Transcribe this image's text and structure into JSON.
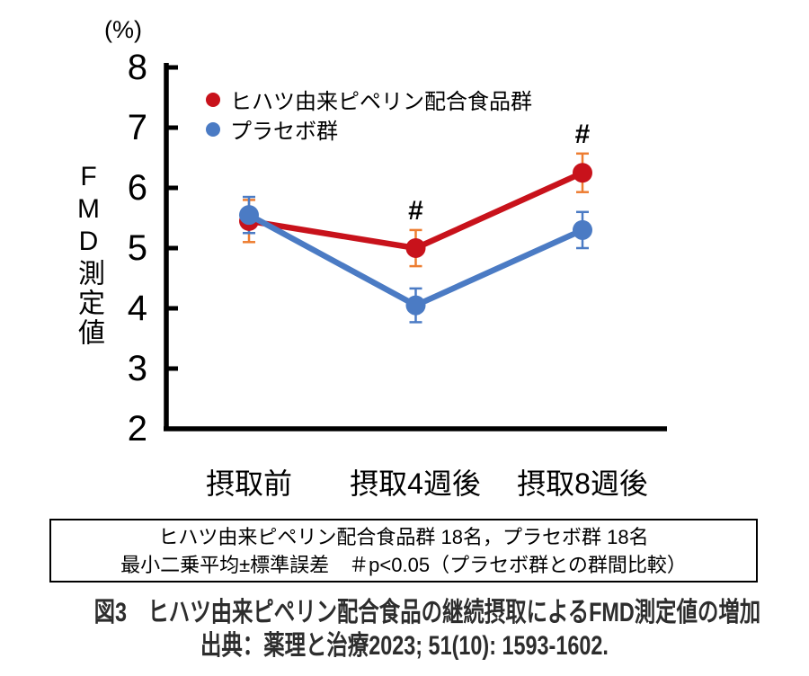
{
  "chart_data": {
    "type": "line",
    "title": "図3　ヒハツ由来ピペリン配合食品の継続摂取によるFMD測定値の増加",
    "y_unit": "(%)",
    "y_axis_label": "FMD測定値",
    "xlabel": "",
    "ylim": [
      2,
      8
    ],
    "yticks": [
      8,
      7,
      6,
      5,
      4,
      3,
      2
    ],
    "categories": [
      "摂取前",
      "摂取4週後",
      "摂取8週後"
    ],
    "series": [
      {
        "name": "ヒハツ由来ピペリン配合食品群",
        "color": "#c8121b",
        "error_color": "#ed7d31",
        "values": [
          5.45,
          5.0,
          6.25
        ],
        "errors": [
          0.35,
          0.3,
          0.32
        ]
      },
      {
        "name": "プラセボ群",
        "color": "#4b7bc4",
        "error_color": "#4b7bc4",
        "values": [
          5.55,
          4.05,
          5.3
        ],
        "errors": [
          0.3,
          0.28,
          0.3
        ]
      }
    ],
    "annotations": [
      {
        "text": "#",
        "series_index": 0,
        "category_index": 1
      },
      {
        "text": "#",
        "series_index": 0,
        "category_index": 2
      }
    ],
    "legend_position": "top-left-inside",
    "grid": false
  },
  "note_box": {
    "line1": "ヒハツ由来ピペリン配合食品群 18名，プラセボ群 18名",
    "line2": "最小二乗平均±標準誤差　＃p<0.05（プラセボ群との群間比較）"
  },
  "caption": {
    "line1": "図3　ヒハツ由来ピペリン配合食品の継続摂取によるFMD測定値の増加",
    "line2": "出典：薬理と治療2023; 51(10): 1593-1602."
  }
}
